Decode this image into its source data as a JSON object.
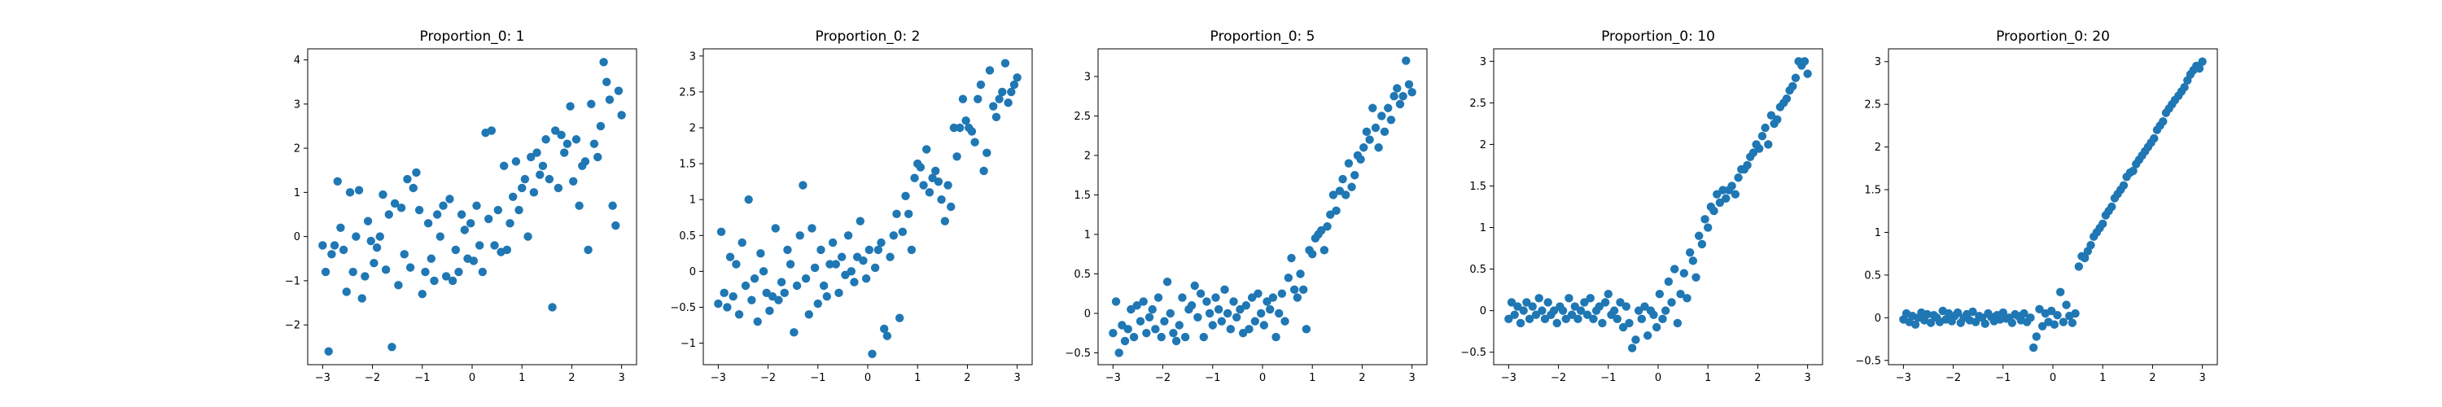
{
  "chart_data": [
    {
      "type": "scatter",
      "title": "Proportion_0: 1",
      "xlabel": "",
      "ylabel": "",
      "xlim": [
        -3.3,
        3.3
      ],
      "ylim": [
        -2.9,
        4.25
      ],
      "xticks": [
        -3,
        -2,
        -1,
        0,
        1,
        2,
        3
      ],
      "yticks": [
        -2,
        -1,
        0,
        1,
        2,
        3,
        4
      ],
      "grid": false,
      "marker_color": "#1f77b4",
      "x": [
        -3.0,
        -2.94,
        -2.88,
        -2.82,
        -2.76,
        -2.7,
        -2.64,
        -2.58,
        -2.52,
        -2.45,
        -2.39,
        -2.33,
        -2.27,
        -2.21,
        -2.15,
        -2.09,
        -2.03,
        -1.97,
        -1.91,
        -1.85,
        -1.79,
        -1.73,
        -1.67,
        -1.61,
        -1.55,
        -1.48,
        -1.42,
        -1.36,
        -1.3,
        -1.24,
        -1.18,
        -1.12,
        -1.06,
        -1.0,
        -0.94,
        -0.88,
        -0.82,
        -0.76,
        -0.7,
        -0.64,
        -0.58,
        -0.52,
        -0.45,
        -0.39,
        -0.33,
        -0.27,
        -0.21,
        -0.15,
        -0.09,
        -0.03,
        0.03,
        0.09,
        0.15,
        0.21,
        0.27,
        0.33,
        0.39,
        0.45,
        0.52,
        0.58,
        0.64,
        0.7,
        0.76,
        0.82,
        0.88,
        0.94,
        1.0,
        1.06,
        1.12,
        1.18,
        1.24,
        1.3,
        1.36,
        1.42,
        1.48,
        1.55,
        1.61,
        1.67,
        1.73,
        1.79,
        1.85,
        1.91,
        1.97,
        2.03,
        2.09,
        2.15,
        2.21,
        2.27,
        2.33,
        2.39,
        2.45,
        2.52,
        2.58,
        2.64,
        2.7,
        2.76,
        2.82,
        2.88,
        2.94,
        3.0
      ],
      "y": [
        -0.2,
        -0.8,
        -2.6,
        -0.4,
        -0.2,
        1.25,
        0.2,
        -0.3,
        -1.25,
        1.0,
        -0.8,
        0.0,
        1.05,
        -1.4,
        -0.9,
        0.35,
        -0.1,
        -0.6,
        -0.25,
        0.0,
        0.95,
        -0.75,
        0.5,
        -2.5,
        0.75,
        -1.1,
        0.65,
        -0.4,
        1.3,
        -0.7,
        1.1,
        1.45,
        0.6,
        -1.3,
        -0.8,
        0.3,
        -0.5,
        -1.0,
        0.5,
        0.0,
        0.7,
        -0.9,
        0.85,
        -1.0,
        -0.3,
        -0.8,
        0.5,
        0.15,
        -0.5,
        0.3,
        -0.55,
        0.7,
        -0.2,
        -0.8,
        2.35,
        0.4,
        2.4,
        -0.2,
        0.6,
        -0.35,
        1.6,
        -0.3,
        0.3,
        0.9,
        1.7,
        0.6,
        1.1,
        1.3,
        0.0,
        1.8,
        1.0,
        1.9,
        1.4,
        1.6,
        2.2,
        1.3,
        -1.6,
        2.4,
        1.1,
        2.3,
        1.9,
        2.1,
        2.95,
        1.25,
        2.2,
        0.7,
        1.6,
        1.7,
        -0.3,
        3.0,
        2.1,
        1.8,
        2.5,
        3.95,
        3.5,
        3.1,
        0.7,
        0.25,
        3.3,
        2.75
      ]
    },
    {
      "type": "scatter",
      "title": "Proportion_0: 2",
      "xlabel": "",
      "ylabel": "",
      "xlim": [
        -3.3,
        3.3
      ],
      "ylim": [
        -1.3,
        3.1
      ],
      "xticks": [
        -3,
        -2,
        -1,
        0,
        1,
        2,
        3
      ],
      "yticks": [
        -1.0,
        -0.5,
        0.0,
        0.5,
        1.0,
        1.5,
        2.0,
        2.5,
        3.0
      ],
      "grid": false,
      "marker_color": "#1f77b4",
      "x": [
        -3.0,
        -2.94,
        -2.88,
        -2.82,
        -2.76,
        -2.7,
        -2.64,
        -2.58,
        -2.52,
        -2.45,
        -2.39,
        -2.33,
        -2.27,
        -2.21,
        -2.15,
        -2.09,
        -2.03,
        -1.97,
        -1.91,
        -1.85,
        -1.79,
        -1.73,
        -1.67,
        -1.61,
        -1.55,
        -1.48,
        -1.42,
        -1.36,
        -1.3,
        -1.24,
        -1.18,
        -1.12,
        -1.06,
        -1.0,
        -0.94,
        -0.88,
        -0.82,
        -0.76,
        -0.7,
        -0.64,
        -0.58,
        -0.52,
        -0.45,
        -0.39,
        -0.33,
        -0.27,
        -0.21,
        -0.15,
        -0.09,
        -0.03,
        0.03,
        0.09,
        0.15,
        0.21,
        0.27,
        0.33,
        0.39,
        0.45,
        0.52,
        0.58,
        0.64,
        0.7,
        0.76,
        0.82,
        0.88,
        0.94,
        1.0,
        1.06,
        1.12,
        1.18,
        1.24,
        1.3,
        1.36,
        1.42,
        1.48,
        1.55,
        1.61,
        1.67,
        1.73,
        1.79,
        1.85,
        1.91,
        1.97,
        2.03,
        2.09,
        2.15,
        2.21,
        2.27,
        2.33,
        2.39,
        2.45,
        2.52,
        2.58,
        2.64,
        2.7,
        2.76,
        2.82,
        2.88,
        2.94,
        3.0
      ],
      "y": [
        -0.45,
        0.55,
        -0.3,
        -0.5,
        0.2,
        -0.35,
        0.1,
        -0.6,
        0.4,
        -0.2,
        1.0,
        -0.4,
        -0.1,
        -0.7,
        0.25,
        0.0,
        -0.3,
        -0.55,
        -0.35,
        0.6,
        -0.4,
        -0.15,
        -0.3,
        0.3,
        0.1,
        -0.85,
        -0.2,
        0.5,
        1.2,
        -0.1,
        -0.6,
        0.6,
        0.05,
        -0.45,
        0.3,
        -0.2,
        -0.35,
        0.1,
        0.4,
        0.1,
        -0.3,
        0.2,
        -0.05,
        0.5,
        0.0,
        -0.15,
        0.2,
        0.7,
        0.15,
        -0.1,
        0.3,
        -1.15,
        0.05,
        0.3,
        0.4,
        -0.8,
        -0.9,
        0.2,
        0.5,
        0.8,
        -0.65,
        0.55,
        1.05,
        0.8,
        0.3,
        1.3,
        1.5,
        1.45,
        1.2,
        1.7,
        1.1,
        1.3,
        1.4,
        1.25,
        1.0,
        0.7,
        1.2,
        0.9,
        2.0,
        1.6,
        2.0,
        2.4,
        2.1,
        2.0,
        1.95,
        1.8,
        2.4,
        2.6,
        1.4,
        1.65,
        2.8,
        2.3,
        2.15,
        2.4,
        2.5,
        2.9,
        2.35,
        2.5,
        2.6,
        2.7
      ]
    },
    {
      "type": "scatter",
      "title": "Proportion_0: 5",
      "xlabel": "",
      "ylabel": "",
      "xlim": [
        -3.3,
        3.3
      ],
      "ylim": [
        -0.65,
        3.35
      ],
      "xticks": [
        -3,
        -2,
        -1,
        0,
        1,
        2,
        3
      ],
      "yticks": [
        -0.5,
        0.0,
        0.5,
        1.0,
        1.5,
        2.0,
        2.5,
        3.0
      ],
      "grid": false,
      "marker_color": "#1f77b4",
      "x": [
        -3.0,
        -2.94,
        -2.88,
        -2.82,
        -2.76,
        -2.7,
        -2.64,
        -2.58,
        -2.52,
        -2.45,
        -2.39,
        -2.33,
        -2.27,
        -2.21,
        -2.15,
        -2.09,
        -2.03,
        -1.97,
        -1.91,
        -1.85,
        -1.79,
        -1.73,
        -1.67,
        -1.61,
        -1.55,
        -1.48,
        -1.42,
        -1.36,
        -1.3,
        -1.24,
        -1.18,
        -1.12,
        -1.06,
        -1.0,
        -0.94,
        -0.88,
        -0.82,
        -0.76,
        -0.7,
        -0.64,
        -0.58,
        -0.52,
        -0.45,
        -0.39,
        -0.33,
        -0.27,
        -0.21,
        -0.15,
        -0.09,
        -0.03,
        0.03,
        0.09,
        0.15,
        0.21,
        0.27,
        0.33,
        0.39,
        0.45,
        0.52,
        0.58,
        0.64,
        0.7,
        0.76,
        0.82,
        0.88,
        0.94,
        1.0,
        1.06,
        1.12,
        1.18,
        1.24,
        1.3,
        1.36,
        1.42,
        1.48,
        1.55,
        1.61,
        1.67,
        1.73,
        1.79,
        1.85,
        1.91,
        1.97,
        2.03,
        2.09,
        2.15,
        2.21,
        2.27,
        2.33,
        2.39,
        2.45,
        2.52,
        2.58,
        2.64,
        2.7,
        2.76,
        2.82,
        2.88,
        2.94,
        3.0
      ],
      "y": [
        -0.25,
        0.15,
        -0.5,
        -0.15,
        -0.35,
        -0.2,
        0.05,
        -0.3,
        0.1,
        -0.1,
        0.15,
        -0.25,
        -0.05,
        0.05,
        -0.2,
        0.2,
        -0.3,
        -0.1,
        0.4,
        0.0,
        -0.25,
        -0.35,
        -0.15,
        0.2,
        -0.3,
        0.05,
        0.1,
        0.35,
        -0.05,
        0.25,
        -0.3,
        0.15,
        0.0,
        -0.15,
        0.2,
        0.05,
        -0.1,
        0.3,
        0.0,
        -0.2,
        0.15,
        -0.05,
        0.05,
        -0.25,
        0.1,
        -0.2,
        0.2,
        -0.1,
        0.25,
        0.0,
        -0.15,
        0.15,
        0.05,
        0.2,
        -0.3,
        0.0,
        0.25,
        -0.1,
        0.45,
        0.7,
        0.3,
        0.2,
        0.5,
        0.3,
        -0.2,
        0.8,
        0.75,
        0.95,
        1.0,
        1.05,
        0.8,
        1.1,
        1.25,
        1.5,
        1.3,
        1.55,
        1.7,
        1.5,
        1.9,
        1.6,
        1.75,
        2.0,
        1.95,
        2.1,
        2.3,
        2.2,
        2.6,
        2.35,
        2.1,
        2.5,
        2.3,
        2.6,
        2.45,
        2.75,
        2.85,
        2.65,
        2.75,
        3.2,
        2.9,
        2.8
      ]
    },
    {
      "type": "scatter",
      "title": "Proportion_0: 10",
      "xlabel": "",
      "ylabel": "",
      "xlim": [
        -3.3,
        3.3
      ],
      "ylim": [
        -0.65,
        3.15
      ],
      "xticks": [
        -3,
        -2,
        -1,
        0,
        1,
        2,
        3
      ],
      "yticks": [
        -0.5,
        0.0,
        0.5,
        1.0,
        1.5,
        2.0,
        2.5,
        3.0
      ],
      "grid": false,
      "marker_color": "#1f77b4",
      "x": [
        -3.0,
        -2.94,
        -2.88,
        -2.82,
        -2.76,
        -2.7,
        -2.64,
        -2.58,
        -2.52,
        -2.45,
        -2.39,
        -2.33,
        -2.27,
        -2.21,
        -2.15,
        -2.09,
        -2.03,
        -1.97,
        -1.91,
        -1.85,
        -1.79,
        -1.73,
        -1.67,
        -1.61,
        -1.55,
        -1.48,
        -1.42,
        -1.36,
        -1.3,
        -1.24,
        -1.18,
        -1.12,
        -1.06,
        -1.0,
        -0.94,
        -0.88,
        -0.82,
        -0.76,
        -0.7,
        -0.64,
        -0.58,
        -0.52,
        -0.45,
        -0.39,
        -0.33,
        -0.27,
        -0.21,
        -0.15,
        -0.09,
        -0.03,
        0.03,
        0.09,
        0.15,
        0.21,
        0.27,
        0.33,
        0.39,
        0.45,
        0.52,
        0.58,
        0.64,
        0.7,
        0.76,
        0.82,
        0.88,
        0.94,
        1.0,
        1.06,
        1.12,
        1.18,
        1.24,
        1.3,
        1.36,
        1.42,
        1.48,
        1.55,
        1.61,
        1.67,
        1.73,
        1.79,
        1.85,
        1.91,
        1.97,
        2.03,
        2.09,
        2.15,
        2.21,
        2.27,
        2.33,
        2.39,
        2.45,
        2.52,
        2.58,
        2.64,
        2.7,
        2.76,
        2.82,
        2.88,
        2.94,
        3.0
      ],
      "y": [
        -0.1,
        0.1,
        -0.05,
        0.05,
        -0.15,
        0.0,
        0.1,
        -0.1,
        0.05,
        -0.05,
        0.15,
        0.0,
        -0.1,
        0.1,
        -0.05,
        0.0,
        -0.15,
        0.05,
        0.0,
        -0.1,
        0.15,
        -0.05,
        0.05,
        -0.1,
        0.0,
        0.1,
        -0.05,
        0.15,
        -0.1,
        0.0,
        0.05,
        -0.15,
        0.1,
        0.2,
        -0.05,
        0.0,
        -0.1,
        0.1,
        -0.2,
        0.05,
        -0.15,
        -0.45,
        -0.35,
        0.0,
        -0.1,
        0.05,
        -0.3,
        0.0,
        -0.05,
        -0.2,
        0.2,
        -0.1,
        0.0,
        0.35,
        0.1,
        0.5,
        -0.15,
        0.2,
        0.45,
        0.15,
        0.7,
        0.6,
        0.4,
        0.9,
        0.8,
        1.1,
        1.0,
        1.25,
        1.2,
        1.4,
        1.3,
        1.45,
        1.35,
        1.45,
        1.5,
        1.4,
        1.6,
        1.7,
        1.7,
        1.75,
        1.85,
        1.9,
        2.0,
        1.95,
        2.1,
        2.2,
        2.0,
        2.35,
        2.25,
        2.3,
        2.45,
        2.5,
        2.55,
        2.65,
        2.7,
        2.8,
        3.0,
        2.95,
        3.0,
        2.85
      ]
    },
    {
      "type": "scatter",
      "title": "Proportion_0: 20",
      "xlabel": "",
      "ylabel": "",
      "xlim": [
        -3.3,
        3.3
      ],
      "ylim": [
        -0.55,
        3.15
      ],
      "xticks": [
        -3,
        -2,
        -1,
        0,
        1,
        2,
        3
      ],
      "yticks": [
        -0.5,
        0.0,
        0.5,
        1.0,
        1.5,
        2.0,
        2.5,
        3.0
      ],
      "grid": false,
      "marker_color": "#1f77b4",
      "x": [
        -3.0,
        -2.94,
        -2.88,
        -2.82,
        -2.76,
        -2.7,
        -2.64,
        -2.58,
        -2.52,
        -2.45,
        -2.39,
        -2.33,
        -2.27,
        -2.21,
        -2.15,
        -2.09,
        -2.03,
        -1.97,
        -1.91,
        -1.85,
        -1.79,
        -1.73,
        -1.67,
        -1.61,
        -1.55,
        -1.48,
        -1.42,
        -1.36,
        -1.3,
        -1.24,
        -1.18,
        -1.12,
        -1.06,
        -1.0,
        -0.94,
        -0.88,
        -0.82,
        -0.76,
        -0.7,
        -0.64,
        -0.58,
        -0.52,
        -0.45,
        -0.39,
        -0.33,
        -0.27,
        -0.21,
        -0.15,
        -0.09,
        -0.03,
        0.03,
        0.09,
        0.15,
        0.21,
        0.27,
        0.33,
        0.39,
        0.45,
        0.52,
        0.58,
        0.64,
        0.7,
        0.76,
        0.82,
        0.88,
        0.94,
        1.0,
        1.06,
        1.12,
        1.18,
        1.24,
        1.3,
        1.36,
        1.42,
        1.48,
        1.55,
        1.61,
        1.67,
        1.73,
        1.79,
        1.85,
        1.91,
        1.97,
        2.03,
        2.09,
        2.15,
        2.21,
        2.27,
        2.33,
        2.39,
        2.45,
        2.52,
        2.58,
        2.64,
        2.7,
        2.76,
        2.82,
        2.88,
        2.94,
        3.0
      ],
      "y": [
        -0.02,
        0.05,
        -0.05,
        0.02,
        -0.08,
        0.0,
        0.06,
        -0.03,
        0.04,
        -0.06,
        0.03,
        0.0,
        -0.05,
        0.08,
        -0.02,
        0.05,
        -0.04,
        0.02,
        0.06,
        -0.06,
        0.0,
        0.04,
        -0.03,
        0.07,
        -0.05,
        0.02,
        0.0,
        -0.07,
        0.05,
        0.01,
        -0.04,
        0.03,
        -0.02,
        0.06,
        -0.01,
        0.0,
        -0.06,
        0.04,
        0.02,
        -0.03,
        0.05,
        -0.05,
        0.0,
        -0.35,
        -0.22,
        0.1,
        -0.1,
        0.05,
        -0.05,
        0.08,
        -0.08,
        0.03,
        0.3,
        -0.05,
        0.15,
        0.02,
        -0.06,
        0.05,
        0.6,
        0.72,
        0.7,
        0.78,
        0.85,
        0.95,
        1.0,
        1.05,
        1.1,
        1.2,
        1.25,
        1.3,
        1.4,
        1.45,
        1.5,
        1.55,
        1.65,
        1.7,
        1.72,
        1.8,
        1.85,
        1.9,
        1.95,
        2.0,
        2.05,
        2.1,
        2.2,
        2.25,
        2.3,
        2.4,
        2.45,
        2.5,
        2.55,
        2.6,
        2.65,
        2.7,
        2.78,
        2.85,
        2.9,
        2.95,
        2.92,
        3.0
      ]
    }
  ]
}
